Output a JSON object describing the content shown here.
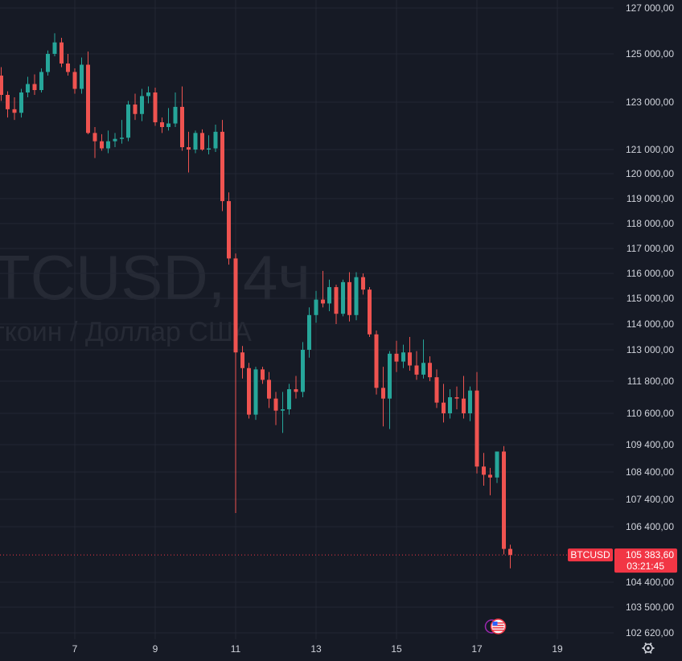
{
  "colors": {
    "background": "#161a25",
    "grid": "#232733",
    "axis_text": "#d1d4dc",
    "up": "#26a69a",
    "down": "#ef5350",
    "price_label": "#f23645",
    "watermark": "#262a35"
  },
  "watermark": {
    "symbol": "TCUSD, 4ч",
    "description": "ткоин / Доллар США"
  },
  "chart_data": {
    "type": "candlestick",
    "symbol": "BTCUSD",
    "interval": "4ч",
    "title": "",
    "xlabel": "",
    "ylabel": "",
    "y_axis_ticks": [
      "127 000,00",
      "125 000,00",
      "123 000,00",
      "121 000,00",
      "120 000,00",
      "119 000,00",
      "118 000,00",
      "117 000,00",
      "116 000,00",
      "115 000,00",
      "114 000,00",
      "113 000,00",
      "111 800,00",
      "110 600,00",
      "109 400,00",
      "108 400,00",
      "107 400,00",
      "106 400,00",
      "104 400,00",
      "103 500,00",
      "102 620,00"
    ],
    "y_axis_values": [
      127000,
      125000,
      123000,
      121000,
      120000,
      119000,
      118000,
      117000,
      116000,
      115000,
      114000,
      113000,
      111800,
      110600,
      109400,
      108400,
      107400,
      106400,
      104400,
      103500,
      102620
    ],
    "x_axis_ticks": [
      "7",
      "9",
      "11",
      "13",
      "15",
      "17",
      "19"
    ],
    "x_axis_day_positions": [
      7,
      9,
      11,
      13,
      15,
      17,
      19
    ],
    "x_range": [
      5.15,
      20.5
    ],
    "last_price": {
      "value": 105383.6,
      "label": "105 383,60",
      "countdown": "03:21:45",
      "symbol_tag": "BTCUSD"
    },
    "events": [
      {
        "day": 17.45,
        "type": "economic-event",
        "flag": "US"
      }
    ],
    "grid": true,
    "candles": [
      {
        "t": 5.17,
        "o": 124100,
        "h": 124450,
        "l": 123050,
        "c": 123300
      },
      {
        "t": 5.33,
        "o": 123300,
        "h": 123450,
        "l": 122350,
        "c": 122700
      },
      {
        "t": 5.5,
        "o": 122700,
        "h": 123200,
        "l": 122250,
        "c": 122550
      },
      {
        "t": 5.67,
        "o": 122550,
        "h": 123550,
        "l": 122350,
        "c": 123400
      },
      {
        "t": 5.83,
        "o": 123400,
        "h": 124050,
        "l": 123200,
        "c": 123750
      },
      {
        "t": 6.0,
        "o": 123750,
        "h": 124150,
        "l": 123300,
        "c": 123500
      },
      {
        "t": 6.17,
        "o": 123500,
        "h": 124400,
        "l": 123400,
        "c": 124250
      },
      {
        "t": 6.33,
        "o": 124250,
        "h": 125150,
        "l": 124100,
        "c": 125000
      },
      {
        "t": 6.5,
        "o": 125000,
        "h": 125900,
        "l": 124900,
        "c": 125500
      },
      {
        "t": 6.67,
        "o": 125500,
        "h": 125700,
        "l": 124450,
        "c": 124600
      },
      {
        "t": 6.83,
        "o": 124600,
        "h": 125000,
        "l": 124100,
        "c": 124250
      },
      {
        "t": 7.0,
        "o": 124250,
        "h": 124400,
        "l": 123350,
        "c": 123550
      },
      {
        "t": 7.17,
        "o": 123550,
        "h": 124850,
        "l": 123350,
        "c": 124550
      },
      {
        "t": 7.33,
        "o": 124550,
        "h": 125100,
        "l": 121650,
        "c": 121700
      },
      {
        "t": 7.5,
        "o": 121700,
        "h": 121950,
        "l": 120650,
        "c": 121350
      },
      {
        "t": 7.67,
        "o": 121350,
        "h": 121650,
        "l": 120950,
        "c": 121050
      },
      {
        "t": 7.83,
        "o": 121050,
        "h": 121800,
        "l": 120850,
        "c": 121350
      },
      {
        "t": 8.0,
        "o": 121350,
        "h": 121700,
        "l": 121100,
        "c": 121450
      },
      {
        "t": 8.17,
        "o": 121450,
        "h": 122250,
        "l": 121250,
        "c": 121500
      },
      {
        "t": 8.33,
        "o": 121500,
        "h": 123050,
        "l": 121350,
        "c": 122900
      },
      {
        "t": 8.5,
        "o": 122900,
        "h": 123350,
        "l": 122250,
        "c": 122500
      },
      {
        "t": 8.67,
        "o": 122500,
        "h": 123550,
        "l": 122200,
        "c": 123250
      },
      {
        "t": 8.83,
        "o": 123250,
        "h": 123650,
        "l": 122950,
        "c": 123400
      },
      {
        "t": 9.0,
        "o": 123400,
        "h": 123600,
        "l": 122000,
        "c": 122150
      },
      {
        "t": 9.17,
        "o": 122150,
        "h": 122350,
        "l": 121700,
        "c": 121950
      },
      {
        "t": 9.33,
        "o": 121950,
        "h": 122750,
        "l": 121800,
        "c": 122100
      },
      {
        "t": 9.5,
        "o": 122100,
        "h": 123400,
        "l": 121950,
        "c": 122800
      },
      {
        "t": 9.67,
        "o": 122800,
        "h": 123650,
        "l": 120950,
        "c": 121100
      },
      {
        "t": 9.83,
        "o": 121100,
        "h": 121750,
        "l": 120050,
        "c": 121000
      },
      {
        "t": 10.0,
        "o": 121000,
        "h": 121800,
        "l": 120850,
        "c": 121700
      },
      {
        "t": 10.17,
        "o": 121700,
        "h": 121850,
        "l": 120950,
        "c": 121000
      },
      {
        "t": 10.33,
        "o": 121000,
        "h": 121600,
        "l": 120800,
        "c": 121050
      },
      {
        "t": 10.5,
        "o": 121050,
        "h": 122050,
        "l": 120900,
        "c": 121750
      },
      {
        "t": 10.67,
        "o": 121750,
        "h": 122250,
        "l": 118500,
        "c": 118900
      },
      {
        "t": 10.83,
        "o": 118900,
        "h": 119250,
        "l": 116350,
        "c": 116600
      },
      {
        "t": 11.0,
        "o": 116600,
        "h": 116800,
        "l": 106900,
        "c": 112900
      },
      {
        "t": 11.17,
        "o": 112900,
        "h": 113150,
        "l": 111900,
        "c": 112300
      },
      {
        "t": 11.33,
        "o": 112300,
        "h": 112500,
        "l": 110400,
        "c": 110550
      },
      {
        "t": 11.5,
        "o": 110550,
        "h": 112350,
        "l": 110350,
        "c": 112250
      },
      {
        "t": 11.67,
        "o": 112250,
        "h": 112350,
        "l": 111700,
        "c": 111850
      },
      {
        "t": 11.83,
        "o": 111850,
        "h": 112150,
        "l": 110800,
        "c": 111150
      },
      {
        "t": 12.0,
        "o": 111150,
        "h": 111400,
        "l": 110150,
        "c": 110700
      },
      {
        "t": 12.17,
        "o": 110700,
        "h": 111400,
        "l": 109850,
        "c": 110750
      },
      {
        "t": 12.33,
        "o": 110750,
        "h": 111700,
        "l": 110550,
        "c": 111500
      },
      {
        "t": 12.5,
        "o": 111500,
        "h": 112000,
        "l": 111150,
        "c": 111400
      },
      {
        "t": 12.67,
        "o": 111400,
        "h": 113300,
        "l": 111200,
        "c": 113000
      },
      {
        "t": 12.83,
        "o": 113000,
        "h": 114650,
        "l": 112700,
        "c": 114350
      },
      {
        "t": 13.0,
        "o": 114350,
        "h": 115300,
        "l": 114050,
        "c": 114950
      },
      {
        "t": 13.17,
        "o": 114950,
        "h": 116100,
        "l": 114650,
        "c": 114800
      },
      {
        "t": 13.33,
        "o": 114800,
        "h": 115750,
        "l": 114500,
        "c": 115450
      },
      {
        "t": 13.5,
        "o": 115450,
        "h": 115550,
        "l": 114000,
        "c": 114400
      },
      {
        "t": 13.67,
        "o": 114400,
        "h": 115750,
        "l": 114300,
        "c": 115650
      },
      {
        "t": 13.83,
        "o": 115650,
        "h": 116050,
        "l": 114100,
        "c": 114350
      },
      {
        "t": 14.0,
        "o": 114350,
        "h": 116050,
        "l": 114150,
        "c": 115850
      },
      {
        "t": 14.17,
        "o": 115850,
        "h": 116000,
        "l": 115150,
        "c": 115350
      },
      {
        "t": 14.33,
        "o": 115350,
        "h": 115450,
        "l": 113500,
        "c": 113600
      },
      {
        "t": 14.5,
        "o": 113600,
        "h": 113750,
        "l": 111300,
        "c": 111550
      },
      {
        "t": 14.67,
        "o": 111550,
        "h": 112350,
        "l": 110100,
        "c": 111150
      },
      {
        "t": 14.83,
        "o": 111150,
        "h": 112950,
        "l": 110000,
        "c": 112850
      },
      {
        "t": 15.0,
        "o": 112850,
        "h": 113350,
        "l": 112150,
        "c": 112550
      },
      {
        "t": 15.17,
        "o": 112550,
        "h": 113200,
        "l": 112300,
        "c": 112900
      },
      {
        "t": 15.33,
        "o": 112900,
        "h": 113500,
        "l": 112200,
        "c": 112400
      },
      {
        "t": 15.5,
        "o": 112400,
        "h": 112950,
        "l": 111850,
        "c": 112050
      },
      {
        "t": 15.67,
        "o": 112050,
        "h": 113400,
        "l": 111900,
        "c": 112500
      },
      {
        "t": 15.83,
        "o": 112500,
        "h": 112750,
        "l": 111800,
        "c": 111950
      },
      {
        "t": 16.0,
        "o": 111950,
        "h": 112250,
        "l": 110800,
        "c": 111000
      },
      {
        "t": 16.17,
        "o": 111000,
        "h": 111700,
        "l": 110250,
        "c": 110600
      },
      {
        "t": 16.33,
        "o": 110600,
        "h": 111500,
        "l": 110400,
        "c": 111200
      },
      {
        "t": 16.5,
        "o": 111200,
        "h": 111600,
        "l": 110750,
        "c": 111150
      },
      {
        "t": 16.67,
        "o": 111150,
        "h": 112000,
        "l": 110400,
        "c": 110600
      },
      {
        "t": 16.83,
        "o": 110600,
        "h": 111600,
        "l": 110300,
        "c": 111450
      },
      {
        "t": 17.0,
        "o": 111450,
        "h": 112150,
        "l": 108350,
        "c": 108600
      },
      {
        "t": 17.17,
        "o": 108600,
        "h": 109100,
        "l": 107900,
        "c": 108300
      },
      {
        "t": 17.33,
        "o": 108300,
        "h": 108550,
        "l": 107550,
        "c": 108200
      },
      {
        "t": 17.5,
        "o": 108200,
        "h": 109150,
        "l": 108000,
        "c": 109150
      },
      {
        "t": 17.67,
        "o": 109150,
        "h": 109350,
        "l": 105400,
        "c": 105600
      },
      {
        "t": 17.83,
        "o": 105600,
        "h": 105750,
        "l": 104900,
        "c": 105383.6
      }
    ]
  }
}
